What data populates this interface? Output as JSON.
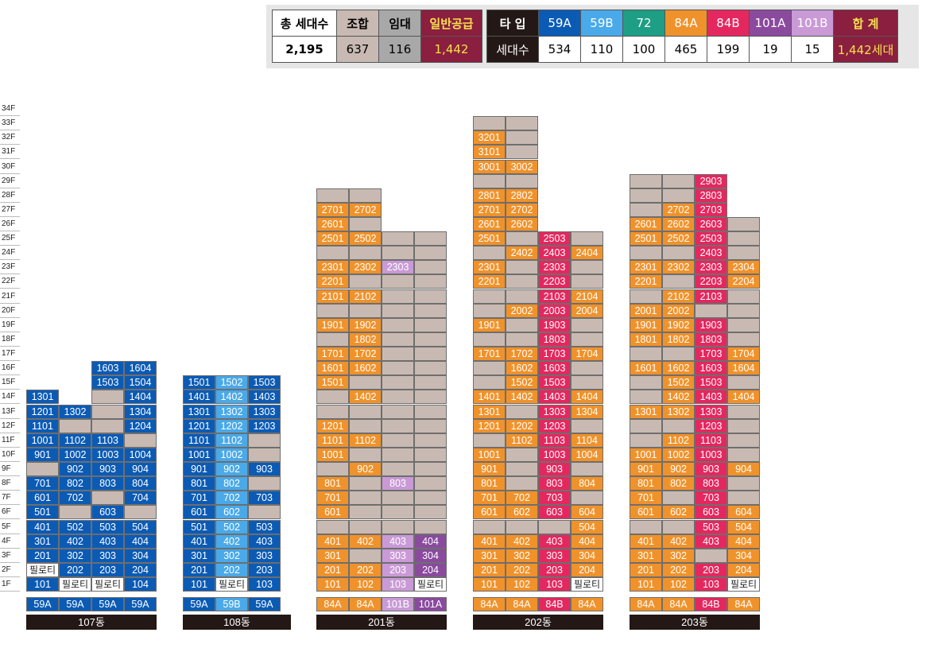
{
  "summary": {
    "total_label": "총 세대수",
    "total_value": "2,195",
    "union_label": "조합",
    "union_value": "637",
    "rental_label": "임대",
    "rental_value": "116",
    "general_label": "일반공급",
    "general_value": "1,442",
    "type_label": "타 입",
    "count_label": "세대수",
    "sum_label": "합 계",
    "sum_value": "1,442세대",
    "types": [
      {
        "name": "59A",
        "count": "534",
        "color": "#0b5bb5"
      },
      {
        "name": "59B",
        "count": "110",
        "color": "#4aa9e8"
      },
      {
        "name": "72",
        "count": "100",
        "color": "#1e9e84"
      },
      {
        "name": "84A",
        "count": "465",
        "color": "#f0922b"
      },
      {
        "name": "84B",
        "count": "199",
        "color": "#e4285f"
      },
      {
        "name": "101A",
        "count": "19",
        "color": "#8a4a9e"
      },
      {
        "name": "101B",
        "count": "15",
        "color": "#c99ad6"
      }
    ],
    "colors": {
      "union": "#c8bab2",
      "rental": "#a8a8a8",
      "general": "#8b1f3f",
      "header_dark": "#231815",
      "general_text": "#f4e04d"
    }
  },
  "floors": [
    "1F",
    "2F",
    "3F",
    "4F",
    "5F",
    "6F",
    "7F",
    "8F",
    "9F",
    "10F",
    "11F",
    "12F",
    "13F",
    "14F",
    "15F",
    "16F",
    "17F",
    "18F",
    "19F",
    "20F",
    "21F",
    "22F",
    "23F",
    "24F",
    "25F",
    "26F",
    "27F",
    "28F",
    "29F",
    "30F",
    "31F",
    "32F",
    "33F",
    "34F"
  ],
  "cell_colors": {
    "B": "#0b5bb5",
    "L": "#4aa9e8",
    "O": "#f0922b",
    "P": "#e4285f",
    "V": "#8a4a9e",
    "v": "#c99ad6",
    "g": "#c8bab2",
    "w": "#ffffff"
  },
  "buildings": [
    {
      "name": "107동",
      "types": [
        "59A",
        "59A",
        "59A",
        "59A"
      ],
      "type_colors": [
        "B",
        "B",
        "B",
        "B"
      ],
      "columns": [
        [
          "B:101",
          "w:필로티",
          "B:201",
          "B:301",
          "B:401",
          "B:501",
          "B:601",
          "B:701",
          "g:",
          "B:901",
          "B:1001",
          "B:1101",
          "B:1201",
          "B:1301"
        ],
        [
          "w:필로티",
          "B:202",
          "B:302",
          "B:402",
          "B:502",
          "g:",
          "B:702",
          "B:802",
          "B:902",
          "B:1002",
          "B:1102",
          "g:",
          "B:1302"
        ],
        [
          "w:필로티",
          "B:203",
          "B:303",
          "B:403",
          "B:503",
          "B:603",
          "g:",
          "B:803",
          "B:903",
          "B:1003",
          "B:1103",
          "g:",
          "g:",
          "g:",
          "B:1503",
          "B:1603"
        ],
        [
          "B:104",
          "B:204",
          "B:304",
          "B:404",
          "B:504",
          "g:",
          "B:704",
          "B:804",
          "B:904",
          "B:1004",
          "g:",
          "B:1204",
          "B:1304",
          "B:1404",
          "B:1504",
          "B:1604"
        ]
      ]
    },
    {
      "name": "108동",
      "types": [
        "59A",
        "59B",
        "59A"
      ],
      "type_colors": [
        "B",
        "L",
        "B"
      ],
      "columns": [
        [
          "B:101",
          "B:201",
          "B:301",
          "B:401",
          "B:501",
          "B:601",
          "B:701",
          "B:801",
          "B:901",
          "B:1001",
          "B:1101",
          "B:1201",
          "B:1301",
          "B:1401",
          "B:1501"
        ],
        [
          "w:필로티",
          "L:202",
          "L:302",
          "L:402",
          "L:502",
          "L:602",
          "L:702",
          "L:802",
          "L:902",
          "L:1002",
          "L:1102",
          "L:1202",
          "L:1302",
          "L:1402",
          "L:1502"
        ],
        [
          "B:103",
          "B:203",
          "B:303",
          "B:403",
          "B:503",
          "g:",
          "B:703",
          "g:",
          "B:903",
          "g:",
          "g:",
          "B:1203",
          "B:1303",
          "B:1403",
          "B:1503"
        ]
      ]
    },
    {
      "name": "201동",
      "types": [
        "84A",
        "84A",
        "101B",
        "101A"
      ],
      "type_colors": [
        "O",
        "O",
        "v",
        "V"
      ],
      "columns": [
        [
          "O:101",
          "O:201",
          "O:301",
          "O:401",
          "g:",
          "O:601",
          "O:701",
          "O:801",
          "g:",
          "O:1001",
          "O:1101",
          "O:1201",
          "g:",
          "g:",
          "O:1501",
          "O:1601",
          "O:1701",
          "g:",
          "O:1901",
          "g:",
          "O:2101",
          "O:2201",
          "O:2301",
          "g:",
          "O:2501",
          "O:2601",
          "O:2701",
          "g:"
        ],
        [
          "O:102",
          "O:202",
          "g:",
          "O:402",
          "g:",
          "g:",
          "g:",
          "g:",
          "O:902",
          "g:",
          "O:1102",
          "g:",
          "g:",
          "O:1402",
          "g:",
          "O:1602",
          "O:1702",
          "O:1802",
          "O:1902",
          "g:",
          "O:2102",
          "g:",
          "O:2302",
          "g:",
          "O:2502",
          "g:",
          "O:2702",
          "g:"
        ],
        [
          "v:103",
          "v:203",
          "v:303",
          "v:403",
          "g:",
          "g:",
          "g:",
          "v:803",
          "g:",
          "g:",
          "g:",
          "g:",
          "g:",
          "g:",
          "g:",
          "g:",
          "g:",
          "g:",
          "g:",
          "g:",
          "g:",
          "g:",
          "v:2303",
          "g:",
          "g:"
        ],
        [
          "w:필로티",
          "V:204",
          "V:304",
          "V:404",
          "g:",
          "g:",
          "g:",
          "g:",
          "g:",
          "g:",
          "g:",
          "g:",
          "g:",
          "g:",
          "g:",
          "g:",
          "g:",
          "g:",
          "g:",
          "g:",
          "g:",
          "g:",
          "g:",
          "g:",
          "g:"
        ]
      ]
    },
    {
      "name": "202동",
      "types": [
        "84A",
        "84A",
        "84B",
        "84A"
      ],
      "type_colors": [
        "O",
        "O",
        "P",
        "O"
      ],
      "columns": [
        [
          "O:101",
          "O:201",
          "O:301",
          "O:401",
          "g:",
          "O:601",
          "O:701",
          "O:801",
          "O:901",
          "O:1001",
          "g:",
          "O:1201",
          "O:1301",
          "O:1401",
          "g:",
          "g:",
          "O:1701",
          "g:",
          "O:1901",
          "g:",
          "g:",
          "O:2201",
          "O:2301",
          "g:",
          "O:2501",
          "O:2601",
          "O:2701",
          "O:2801",
          "g:",
          "O:3001",
          "O:3101",
          "O:3201",
          "g:"
        ],
        [
          "O:102",
          "O:202",
          "O:302",
          "O:402",
          "g:",
          "O:602",
          "O:702",
          "g:",
          "g:",
          "g:",
          "O:1102",
          "O:1202",
          "g:",
          "O:1402",
          "O:1502",
          "O:1602",
          "O:1702",
          "g:",
          "g:",
          "O:2002",
          "g:",
          "g:",
          "g:",
          "O:2402",
          "g:",
          "O:2602",
          "O:2702",
          "O:2802",
          "g:",
          "O:3002",
          "g:",
          "g:",
          "g:"
        ],
        [
          "P:103",
          "P:203",
          "P:303",
          "P:403",
          "g:",
          "P:603",
          "P:703",
          "P:803",
          "P:903",
          "P:1003",
          "P:1103",
          "P:1203",
          "P:1303",
          "P:1403",
          "P:1503",
          "P:1603",
          "P:1703",
          "P:1803",
          "P:1903",
          "P:2003",
          "P:2103",
          "P:2203",
          "P:2303",
          "P:2403",
          "P:2503"
        ],
        [
          "w:필로티",
          "O:204",
          "O:304",
          "O:404",
          "O:504",
          "O:604",
          "g:",
          "O:804",
          "g:",
          "O:1004",
          "O:1104",
          "g:",
          "O:1304",
          "O:1404",
          "g:",
          "g:",
          "O:1704",
          "g:",
          "g:",
          "O:2004",
          "O:2104",
          "g:",
          "g:",
          "O:2404",
          "g:"
        ]
      ]
    },
    {
      "name": "203동",
      "types": [
        "84A",
        "84A",
        "84B",
        "84A"
      ],
      "type_colors": [
        "O",
        "O",
        "P",
        "O"
      ],
      "columns": [
        [
          "O:101",
          "O:201",
          "O:301",
          "O:401",
          "g:",
          "O:601",
          "O:701",
          "O:801",
          "O:901",
          "O:1001",
          "g:",
          "g:",
          "O:1301",
          "g:",
          "g:",
          "O:1601",
          "g:",
          "O:1801",
          "O:1901",
          "O:2001",
          "g:",
          "O:2201",
          "O:2301",
          "g:",
          "O:2501",
          "O:2601",
          "g:",
          "g:",
          "g:"
        ],
        [
          "O:102",
          "O:202",
          "O:302",
          "O:402",
          "g:",
          "O:602",
          "g:",
          "O:802",
          "O:902",
          "O:1002",
          "O:1102",
          "g:",
          "O:1302",
          "O:1402",
          "O:1502",
          "O:1602",
          "g:",
          "O:1802",
          "O:1902",
          "O:2002",
          "O:2102",
          "g:",
          "O:2302",
          "g:",
          "O:2502",
          "O:2602",
          "O:2702",
          "g:",
          "g:"
        ],
        [
          "P:103",
          "P:203",
          "g:",
          "P:403",
          "P:503",
          "P:603",
          "P:703",
          "P:803",
          "P:903",
          "P:1003",
          "P:1103",
          "P:1203",
          "P:1303",
          "P:1403",
          "P:1503",
          "P:1603",
          "P:1703",
          "P:1803",
          "P:1903",
          "g:",
          "P:2103",
          "P:2203",
          "P:2303",
          "P:2403",
          "P:2503",
          "P:2603",
          "P:2703",
          "P:2803",
          "P:2903"
        ],
        [
          "w:필로티",
          "O:204",
          "O:304",
          "O:404",
          "O:504",
          "O:604",
          "g:",
          "g:",
          "O:904",
          "g:",
          "g:",
          "g:",
          "g:",
          "O:1404",
          "g:",
          "O:1604",
          "O:1704",
          "g:",
          "g:",
          "g:",
          "g:",
          "O:2204",
          "O:2304",
          "g:",
          "g:",
          "g:"
        ]
      ]
    }
  ]
}
